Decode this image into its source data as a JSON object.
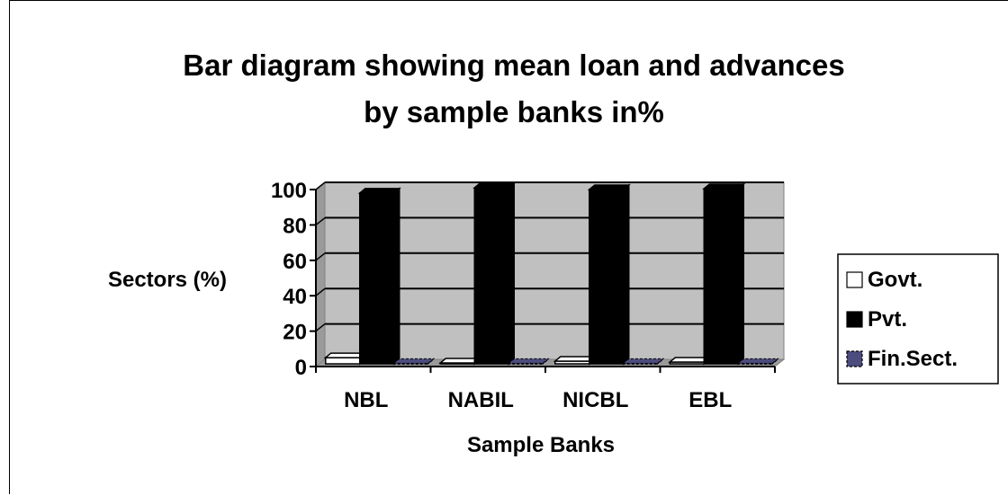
{
  "chart_data": {
    "type": "bar",
    "title": "Bar diagram showing mean loan and advances",
    "subtitle": "by sample banks in%",
    "xlabel": "Sample Banks",
    "ylabel": "Sectors (%)",
    "categories": [
      "NBL",
      "NABIL",
      "NICBL",
      "EBL"
    ],
    "y_ticks": [
      "0",
      "20",
      "40",
      "60",
      "80",
      "100"
    ],
    "ylim": [
      0,
      100
    ],
    "grid": true,
    "three_d": true,
    "legend_position": "right",
    "series": [
      {
        "name": "Govt.",
        "values": [
          3.5,
          0.5,
          1.5,
          1.0
        ],
        "color": "#ffffff"
      },
      {
        "name": "Pvt.",
        "values": [
          96.5,
          99.5,
          98.5,
          99.0
        ],
        "color": "#000000"
      },
      {
        "name": "Fin.Sect.",
        "values": [
          0.3,
          0.3,
          0.3,
          0.3
        ],
        "color": "#4c4c7f"
      }
    ],
    "plot_background": "#c0c0c0"
  }
}
